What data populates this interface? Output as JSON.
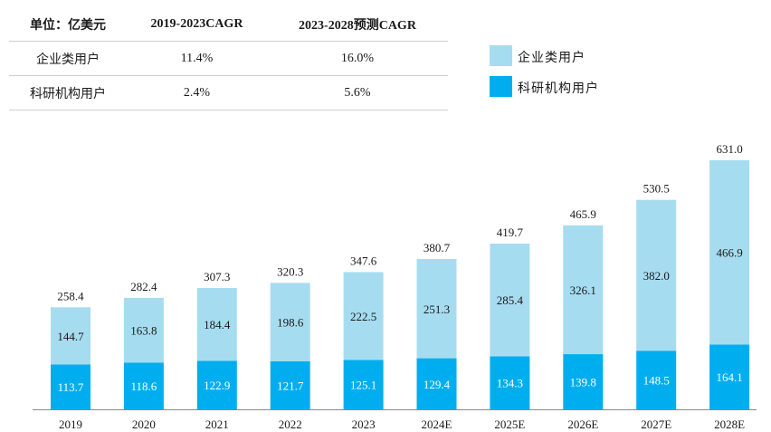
{
  "table": {
    "headers": [
      "单位：亿美元",
      "2019-2023CAGR",
      "2023-2028预测CAGR"
    ],
    "rows": [
      {
        "label": "企业类用户",
        "cagr_2019_2023": "11.4%",
        "cagr_2023_2028": "16.0%"
      },
      {
        "label": "科研机构用户",
        "cagr_2019_2023": "2.4%",
        "cagr_2023_2028": "5.6%"
      }
    ]
  },
  "colors": {
    "enterprise": "#a6dcf0",
    "research": "#00aeef",
    "axis": "#888888",
    "text": "#1a1a1a"
  },
  "chart_data": {
    "type": "bar",
    "stacked": true,
    "categories": [
      "2019",
      "2020",
      "2021",
      "2022",
      "2023",
      "2024E",
      "2025E",
      "2026E",
      "2027E",
      "2028E"
    ],
    "series": [
      {
        "name": "科研机构用户",
        "values": [
          113.7,
          118.6,
          122.9,
          121.7,
          125.1,
          129.4,
          134.3,
          139.8,
          148.5,
          164.1
        ]
      },
      {
        "name": "企业类用户",
        "values": [
          144.7,
          163.8,
          184.4,
          198.6,
          222.5,
          251.3,
          285.4,
          326.1,
          382.0,
          466.9
        ]
      }
    ],
    "totals": [
      258.4,
      282.4,
      307.3,
      320.3,
      347.6,
      380.7,
      419.7,
      465.9,
      530.5,
      631.0
    ],
    "unit": "亿美元",
    "legend": [
      "企业类用户",
      "科研机构用户"
    ],
    "legend_position": "top-right",
    "ylim": [
      0,
      700
    ],
    "grid": false
  }
}
